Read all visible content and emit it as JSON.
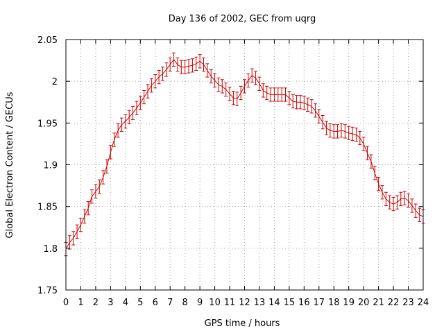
{
  "chart_data": {
    "type": "line",
    "title": "Day 136 of 2002, GEC from uqrg",
    "xlabel": "GPS time / hours",
    "ylabel": "Global Electron Content / GECUs",
    "xlim": [
      0,
      24
    ],
    "ylim": [
      1.75,
      2.05
    ],
    "x_ticks": [
      0,
      1,
      2,
      3,
      4,
      5,
      6,
      7,
      8,
      9,
      10,
      11,
      12,
      13,
      14,
      15,
      16,
      17,
      18,
      19,
      20,
      21,
      22,
      23,
      24
    ],
    "y_ticks": [
      1.75,
      1.8,
      1.85,
      1.9,
      1.95,
      2.0,
      2.05
    ],
    "x_tick_labels": [
      "0",
      "1",
      "2",
      "3",
      "4",
      "5",
      "6",
      "7",
      "8",
      "9",
      "10",
      "11",
      "12",
      "13",
      "14",
      "15",
      "16",
      "17",
      "18",
      "19",
      "20",
      "21",
      "22",
      "23",
      "24"
    ],
    "y_tick_labels": [
      "1.75",
      "1.8",
      "1.85",
      "1.9",
      "1.95",
      "2",
      "2.05"
    ],
    "grid": true,
    "error_bar": 0.008,
    "color": "#cc0000",
    "series": [
      {
        "x": [
          0,
          0.25,
          0.5,
          0.75,
          1,
          1.25,
          1.5,
          1.75,
          2,
          2.25,
          2.5,
          2.75,
          3,
          3.25,
          3.5,
          3.75,
          4,
          4.25,
          4.5,
          4.75,
          5,
          5.25,
          5.5,
          5.75,
          6,
          6.25,
          6.5,
          6.75,
          7,
          7.25,
          7.5,
          7.75,
          8,
          8.25,
          8.5,
          8.75,
          9,
          9.25,
          9.5,
          9.75,
          10,
          10.25,
          10.5,
          10.75,
          11,
          11.25,
          11.5,
          11.75,
          12,
          12.25,
          12.5,
          12.75,
          13,
          13.25,
          13.5,
          13.75,
          14,
          14.25,
          14.5,
          14.75,
          15,
          15.25,
          15.5,
          15.75,
          16,
          16.25,
          16.5,
          16.75,
          17,
          17.25,
          17.5,
          17.75,
          18,
          18.25,
          18.5,
          18.75,
          19,
          19.25,
          19.5,
          19.75,
          20,
          20.25,
          20.5,
          20.75,
          21,
          21.25,
          21.5,
          21.75,
          22,
          22.25,
          22.5,
          22.75,
          23,
          23.25,
          23.5,
          23.75,
          24
        ],
        "y": [
          1.799,
          1.807,
          1.812,
          1.82,
          1.828,
          1.838,
          1.848,
          1.862,
          1.868,
          1.874,
          1.885,
          1.898,
          1.915,
          1.93,
          1.941,
          1.948,
          1.952,
          1.957,
          1.962,
          1.968,
          1.974,
          1.981,
          1.988,
          1.995,
          2.0,
          2.005,
          2.009,
          2.014,
          2.02,
          2.026,
          2.02,
          2.017,
          2.017,
          2.018,
          2.019,
          2.021,
          2.024,
          2.02,
          2.013,
          2.006,
          2.001,
          1.996,
          1.994,
          1.99,
          1.985,
          1.98,
          1.979,
          1.986,
          1.994,
          2.001,
          2.007,
          2.004,
          1.997,
          1.989,
          1.986,
          1.984,
          1.984,
          1.984,
          1.984,
          1.984,
          1.98,
          1.976,
          1.975,
          1.975,
          1.974,
          1.972,
          1.97,
          1.965,
          1.958,
          1.951,
          1.944,
          1.941,
          1.94,
          1.94,
          1.941,
          1.94,
          1.938,
          1.937,
          1.936,
          1.932,
          1.925,
          1.914,
          1.904,
          1.89,
          1.877,
          1.867,
          1.859,
          1.855,
          1.853,
          1.855,
          1.859,
          1.86,
          1.857,
          1.851,
          1.845,
          1.84,
          1.838
        ]
      }
    ]
  }
}
